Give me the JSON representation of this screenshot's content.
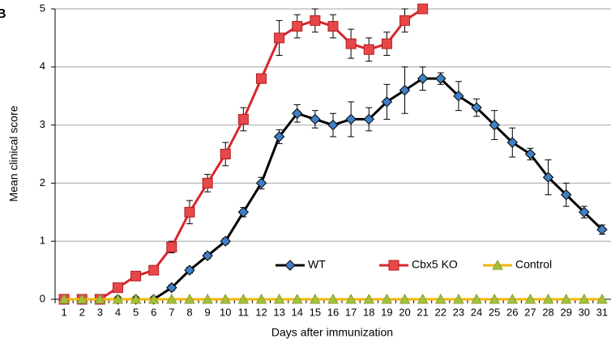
{
  "panel_label": "B",
  "chart_data": {
    "type": "line",
    "x_label": "Days after immunization",
    "y_label": "Mean clinical score",
    "categories": [
      1,
      2,
      3,
      4,
      5,
      6,
      7,
      8,
      9,
      10,
      11,
      12,
      13,
      14,
      15,
      16,
      17,
      18,
      19,
      20,
      21,
      22,
      23,
      24,
      25,
      26,
      27,
      28,
      29,
      30,
      31
    ],
    "ylim": [
      0,
      5
    ],
    "yticks": [
      0,
      1,
      2,
      3,
      4,
      5
    ],
    "grid": true,
    "legend": "bottom",
    "series": [
      {
        "name": "WT",
        "color": "#000000",
        "marker": "diamond",
        "marker_color": "#3f7fc4",
        "values": [
          0,
          0,
          0,
          0,
          0,
          0,
          0.2,
          0.5,
          0.75,
          1,
          1.5,
          2,
          2.8,
          3.2,
          3.1,
          3.0,
          3.1,
          3.1,
          3.4,
          3.6,
          3.8,
          3.8,
          3.5,
          3.3,
          3.0,
          2.7,
          2.5,
          2.1,
          1.8,
          1.5,
          1.2
        ],
        "errors": [
          0,
          0,
          0,
          0,
          0,
          0,
          0.05,
          0.05,
          0.05,
          0.05,
          0.08,
          0.1,
          0.12,
          0.15,
          0.15,
          0.2,
          0.3,
          0.2,
          0.3,
          0.4,
          0.2,
          0.1,
          0.25,
          0.15,
          0.25,
          0.25,
          0.1,
          0.3,
          0.2,
          0.1,
          0.08
        ]
      },
      {
        "name": "Cbx5 KO",
        "color": "#d9262b",
        "marker": "square",
        "marker_color": "#e8474a",
        "values": [
          0,
          0,
          0,
          0.2,
          0.4,
          0.5,
          0.9,
          1.5,
          2.0,
          2.5,
          3.1,
          3.8,
          4.5,
          4.7,
          4.8,
          4.7,
          4.4,
          4.3,
          4.4,
          4.8,
          5.0,
          null,
          null,
          null,
          null,
          null,
          null,
          null,
          null,
          null,
          null
        ],
        "errors": [
          0,
          0,
          0,
          0,
          0,
          0,
          0.1,
          0.2,
          0.15,
          0.2,
          0.2,
          0.05,
          0.3,
          0.2,
          0.2,
          0.2,
          0.25,
          0.2,
          0.2,
          0.2,
          0,
          null,
          null,
          null,
          null,
          null,
          null,
          null,
          null,
          null,
          null
        ]
      },
      {
        "name": "Control",
        "color": "#f2b705",
        "marker": "triangle",
        "marker_color": "#a5c13a",
        "values": [
          0,
          0,
          0,
          0,
          0,
          0,
          0,
          0,
          0,
          0,
          0,
          0,
          0,
          0,
          0,
          0,
          0,
          0,
          0,
          0,
          0,
          0,
          0,
          0,
          0,
          0,
          0,
          0,
          0,
          0,
          0
        ]
      }
    ]
  }
}
